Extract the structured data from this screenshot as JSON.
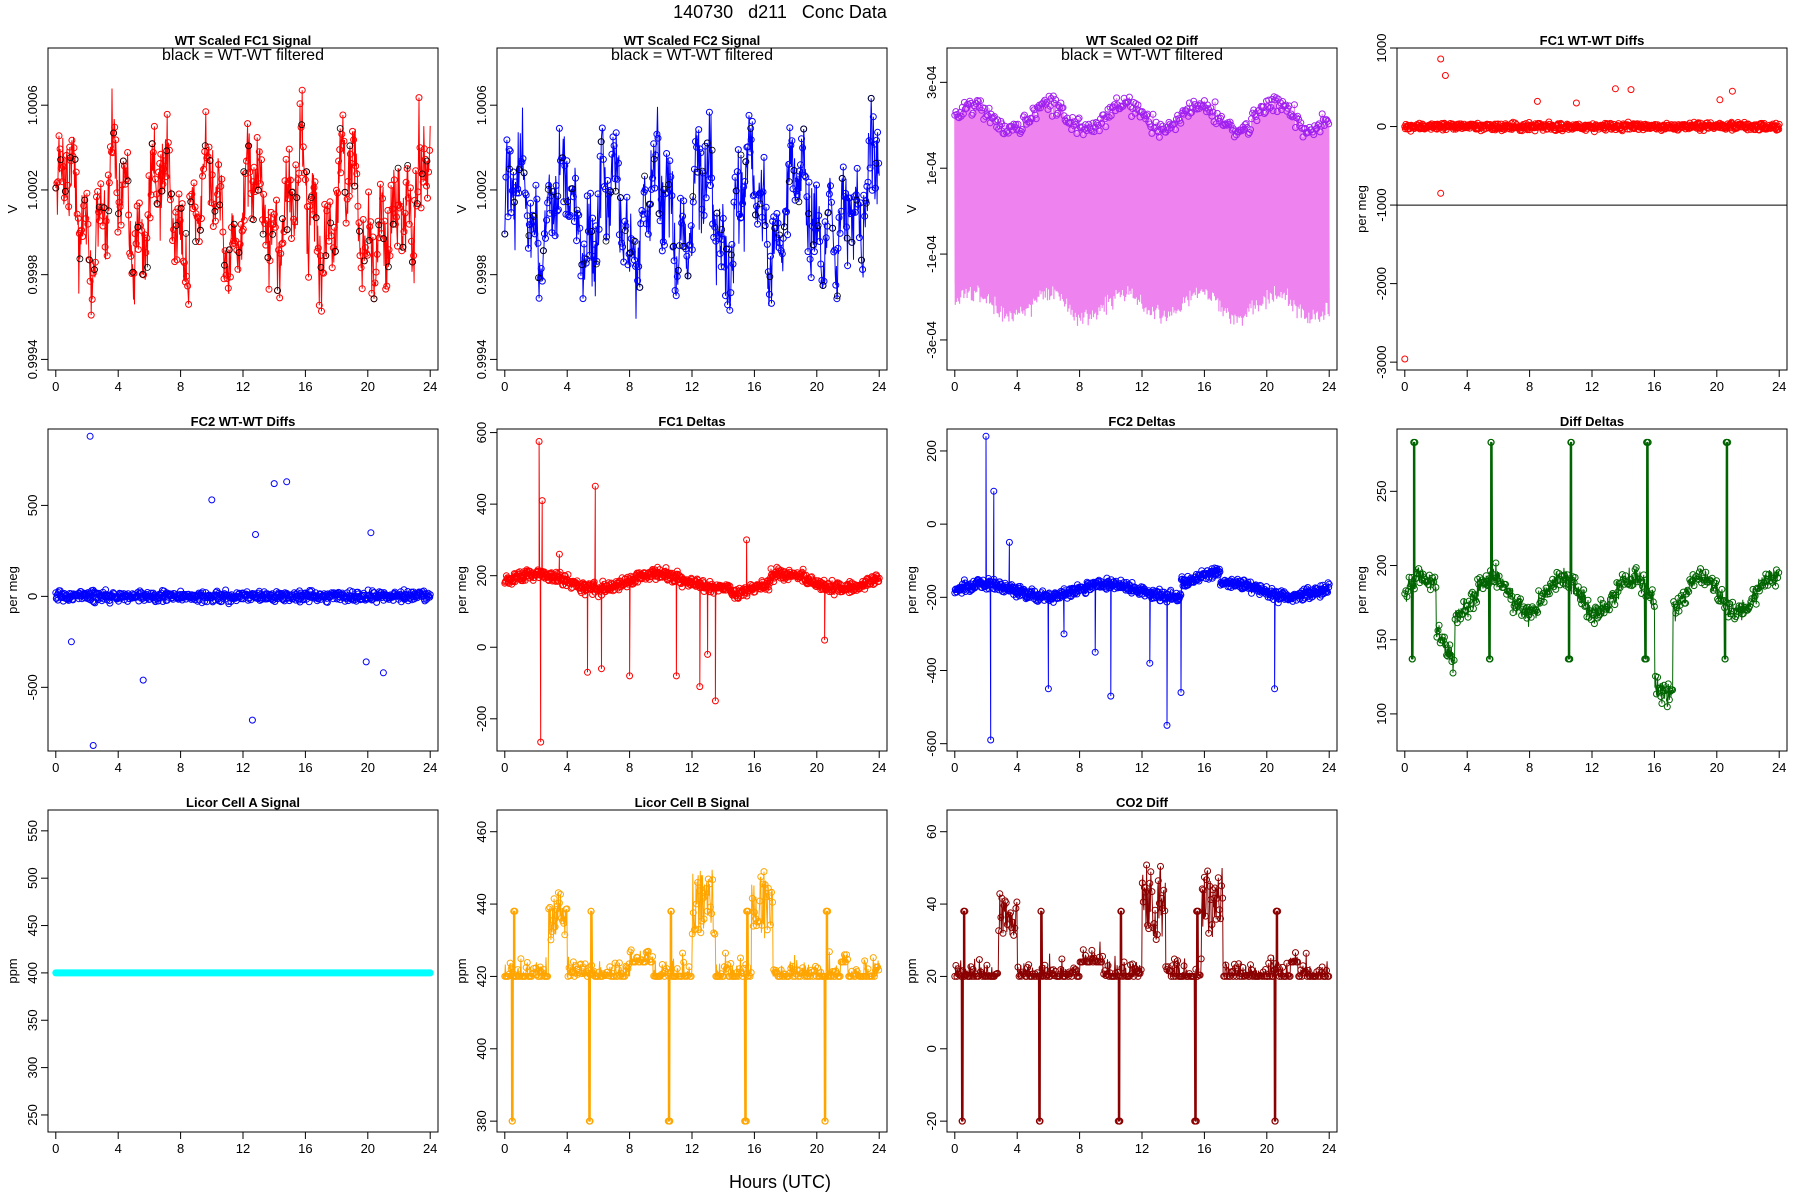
{
  "figure": {
    "title": "140730   d211   Conc Data",
    "xlabel": "Hours (UTC)"
  },
  "chart_data": [
    {
      "id": "p1",
      "type": "line",
      "title": "WT Scaled FC1 Signal",
      "note": "black = WT-WT filtered",
      "ylabel": "V",
      "xlim": [
        -0.5,
        24.5
      ],
      "ylim": [
        0.99935,
        1.00087
      ],
      "x_ticks": [
        0,
        4,
        8,
        12,
        16,
        20,
        24
      ],
      "y_ticks": [
        0.9994,
        0.9998,
        1.0002,
        1.0006
      ],
      "y_tick_labels": [
        "0.9994",
        "0.9998",
        "1.0002",
        "1.0006"
      ],
      "color": "#ff0000",
      "pattern": "signal",
      "base": 1.0001,
      "amp": 0.0004,
      "seed": 1
    },
    {
      "id": "p2",
      "type": "line",
      "title": "WT Scaled FC2 Signal",
      "note": "black = WT-WT filtered",
      "ylabel": "V",
      "xlim": [
        -0.5,
        24.5
      ],
      "ylim": [
        0.99935,
        1.00087
      ],
      "x_ticks": [
        0,
        4,
        8,
        12,
        16,
        20,
        24
      ],
      "y_ticks": [
        0.9994,
        0.9998,
        1.0002,
        1.0006
      ],
      "y_tick_labels": [
        "0.9994",
        "0.9998",
        "1.0002",
        "1.0006"
      ],
      "color": "#0000ff",
      "pattern": "signal",
      "base": 1.0001,
      "amp": 0.0004,
      "seed": 2
    },
    {
      "id": "p3",
      "type": "line",
      "title": "WT Scaled O2 Diff",
      "note": "black = WT-WT filtered",
      "ylabel": "V",
      "xlim": [
        -0.5,
        24.5
      ],
      "ylim": [
        -0.00037,
        0.00038
      ],
      "x_ticks": [
        0,
        4,
        8,
        12,
        16,
        20,
        24
      ],
      "y_ticks": [
        -0.0003,
        -0.0001,
        0.0001,
        0.0003
      ],
      "y_tick_labels": [
        "-3e-04",
        "-1e-04",
        "1e-04",
        "3e-04"
      ],
      "color": "#ee82ee",
      "point_color": "#a020f0",
      "pattern": "diff",
      "base": 0.00022,
      "amp": 3e-05,
      "seed": 3
    },
    {
      "id": "p4",
      "type": "scatter",
      "title": "FC1 WT-WT Diffs",
      "ylabel": "per meg",
      "xlim": [
        -0.5,
        24.5
      ],
      "ylim": [
        -3100,
        1000
      ],
      "x_ticks": [
        0,
        4,
        8,
        12,
        16,
        20,
        24
      ],
      "y_ticks": [
        -3000,
        -2000,
        -1000,
        0,
        1000
      ],
      "y_tick_labels": [
        "-3000",
        "-2000",
        "-1000",
        "0",
        "1000"
      ],
      "hline": -1000,
      "color": "#ff0000",
      "pattern": "scatter",
      "amp": 40,
      "seed": 4,
      "outliers": [
        [
          0.0,
          -2960
        ],
        [
          2.3,
          -850
        ],
        [
          2.3,
          860
        ],
        [
          2.6,
          650
        ],
        [
          13.5,
          480
        ],
        [
          14.5,
          470
        ],
        [
          20.2,
          340
        ],
        [
          21.0,
          450
        ],
        [
          8.5,
          320
        ],
        [
          11.0,
          300
        ]
      ]
    },
    {
      "id": "p5",
      "type": "scatter",
      "title": "FC2 WT-WT Diffs",
      "ylabel": "per meg",
      "xlim": [
        -0.5,
        24.5
      ],
      "ylim": [
        -850,
        920
      ],
      "x_ticks": [
        0,
        4,
        8,
        12,
        16,
        20,
        24
      ],
      "y_ticks": [
        -500,
        0,
        500
      ],
      "y_tick_labels": [
        "-500",
        "0",
        "500"
      ],
      "color": "#0000ff",
      "pattern": "scatter",
      "amp": 25,
      "seed": 5,
      "outliers": [
        [
          2.2,
          880
        ],
        [
          2.4,
          -820
        ],
        [
          12.6,
          -680
        ],
        [
          14.0,
          620
        ],
        [
          14.8,
          630
        ],
        [
          10.0,
          530
        ],
        [
          12.8,
          340
        ],
        [
          5.6,
          -460
        ],
        [
          20.2,
          350
        ],
        [
          21.0,
          -420
        ],
        [
          19.9,
          -360
        ],
        [
          1.0,
          -250
        ]
      ]
    },
    {
      "id": "p6",
      "type": "line",
      "title": "FC1 Deltas",
      "ylabel": "per meg",
      "xlim": [
        -0.5,
        24.5
      ],
      "ylim": [
        -290,
        610
      ],
      "x_ticks": [
        0,
        4,
        8,
        12,
        16,
        20,
        24
      ],
      "y_ticks": [
        -200,
        0,
        200,
        400,
        600
      ],
      "y_tick_labels": [
        "-200",
        "0",
        "200",
        "400",
        "600"
      ],
      "color": "#ff0000",
      "pattern": "delta",
      "base": 185,
      "amp": 20,
      "seed": 6,
      "spikes": [
        [
          2.2,
          575
        ],
        [
          2.3,
          -265
        ],
        [
          2.4,
          410
        ],
        [
          5.8,
          450
        ],
        [
          3.5,
          260
        ],
        [
          13.5,
          -150
        ],
        [
          8.0,
          -80
        ],
        [
          6.2,
          -60
        ],
        [
          11.0,
          -80
        ],
        [
          12.5,
          -110
        ],
        [
          13.0,
          -20
        ],
        [
          15.5,
          300
        ],
        [
          20.5,
          20
        ],
        [
          5.3,
          -70
        ]
      ]
    },
    {
      "id": "p7",
      "type": "line",
      "title": "FC2 Deltas",
      "ylabel": "per meg",
      "xlim": [
        -0.5,
        24.5
      ],
      "ylim": [
        -620,
        260
      ],
      "x_ticks": [
        0,
        4,
        8,
        12,
        16,
        20,
        24
      ],
      "y_ticks": [
        -600,
        -400,
        -200,
        0,
        200
      ],
      "y_tick_labels": [
        "-600",
        "-400",
        "-200",
        "0",
        "200"
      ],
      "color": "#0000ff",
      "pattern": "delta",
      "base": -180,
      "amp": 18,
      "seed": 7,
      "spikes": [
        [
          2.0,
          240
        ],
        [
          2.3,
          -590
        ],
        [
          2.5,
          90
        ],
        [
          13.6,
          -550
        ],
        [
          10.0,
          -470
        ],
        [
          6.0,
          -450
        ],
        [
          20.5,
          -450
        ],
        [
          12.5,
          -380
        ],
        [
          14.5,
          -460
        ],
        [
          3.5,
          -50
        ],
        [
          9.0,
          -350
        ],
        [
          7.0,
          -300
        ]
      ]
    },
    {
      "id": "p8",
      "type": "line",
      "title": "Diff Deltas",
      "ylabel": "per meg",
      "xlim": [
        -0.5,
        24.5
      ],
      "ylim": [
        75,
        292
      ],
      "x_ticks": [
        0,
        4,
        8,
        12,
        16,
        20,
        24
      ],
      "y_ticks": [
        100,
        150,
        200,
        250
      ],
      "y_tick_labels": [
        "100",
        "150",
        "200",
        "250"
      ],
      "color": "#006400",
      "pattern": "diffdelta",
      "base": 180,
      "amp": 8,
      "seed": 8,
      "cal_times": [
        0.55,
        5.5,
        10.6,
        15.5,
        20.6
      ],
      "cal_high": 283,
      "cal_low": 137
    },
    {
      "id": "p9",
      "type": "line",
      "title": "Licor Cell A Signal",
      "ylabel": "ppm",
      "xlim": [
        -0.5,
        24.5
      ],
      "ylim": [
        232,
        572
      ],
      "x_ticks": [
        0,
        4,
        8,
        12,
        16,
        20,
        24
      ],
      "y_ticks": [
        250,
        300,
        350,
        400,
        450,
        500,
        550
      ],
      "y_tick_labels": [
        "250",
        "300",
        "350",
        "400",
        "450",
        "500",
        "550"
      ],
      "color": "#00ffff",
      "pattern": "flat",
      "base": 400,
      "seed": 9
    },
    {
      "id": "p10",
      "type": "line",
      "title": "Licor Cell B Signal",
      "ylabel": "ppm",
      "xlim": [
        -0.5,
        24.5
      ],
      "ylim": [
        377,
        466
      ],
      "x_ticks": [
        0,
        4,
        8,
        12,
        16,
        20,
        24
      ],
      "y_ticks": [
        380,
        400,
        420,
        440,
        460
      ],
      "y_tick_labels": [
        "380",
        "400",
        "420",
        "440",
        "460"
      ],
      "color": "#ffa500",
      "pattern": "co2",
      "base": 420,
      "seed": 10,
      "cal_times": [
        0.55,
        5.5,
        10.6,
        15.5,
        20.6
      ],
      "cal_high": 438,
      "cal_low": 380
    },
    {
      "id": "p11",
      "type": "line",
      "title": "CO2 Diff",
      "ylabel": "ppm",
      "xlim": [
        -0.5,
        24.5
      ],
      "ylim": [
        -23,
        66
      ],
      "x_ticks": [
        0,
        4,
        8,
        12,
        16,
        20,
        24
      ],
      "y_ticks": [
        -20,
        0,
        20,
        40,
        60
      ],
      "y_tick_labels": [
        "-20",
        "0",
        "20",
        "40",
        "60"
      ],
      "color": "#8b0000",
      "pattern": "co2",
      "base": 20,
      "seed": 11,
      "cal_times": [
        0.55,
        5.5,
        10.6,
        15.5,
        20.6
      ],
      "cal_high": 38,
      "cal_low": -20
    }
  ]
}
